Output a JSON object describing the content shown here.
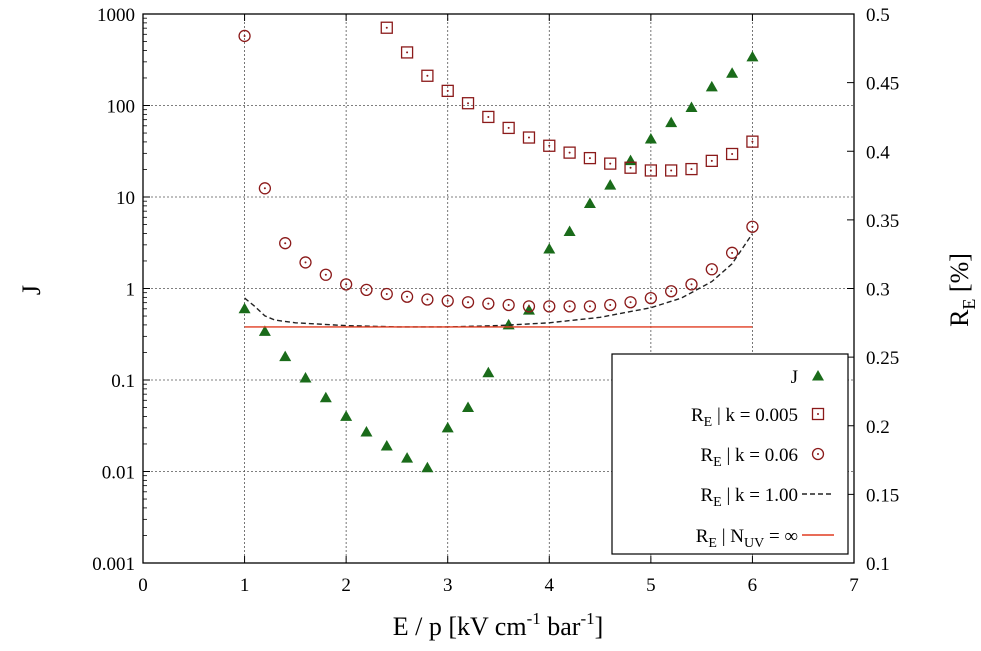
{
  "chart_data": {
    "type": "scatter",
    "x_label": "E / p [kV cm-1 bar-1]",
    "y_left_label": "J",
    "y_right_label": "RE [%]",
    "x_ticks": [
      "0",
      "1",
      "2",
      "3",
      "4",
      "5",
      "6",
      "7"
    ],
    "y_left_ticks": [
      "0.001",
      "0.01",
      "0.1",
      "1",
      "10",
      "100",
      "1000"
    ],
    "y_right_ticks": [
      "0.1",
      "0.15",
      "0.2",
      "0.25",
      "0.3",
      "0.35",
      "0.4",
      "0.45",
      "0.5"
    ],
    "xlim": [
      0,
      7
    ],
    "y_left_lim": [
      0.001,
      1000
    ],
    "y_left_scale": "log",
    "y_right_lim": [
      0.1,
      0.5
    ],
    "grid": true,
    "legend_position": "bottom-right",
    "colors": {
      "J": "#1a6b1a",
      "k0005": "#8b1a1a",
      "k006": "#8b1a1a",
      "k100": "#222222",
      "nuv": "#e03c20"
    },
    "series": [
      {
        "name": "J",
        "legend": "J",
        "axis": "left",
        "marker": "triangle",
        "x": [
          1.0,
          1.2,
          1.4,
          1.6,
          1.8,
          2.0,
          2.2,
          2.4,
          2.6,
          2.8,
          3.0,
          3.2,
          3.4,
          3.6,
          3.8,
          4.0,
          4.2,
          4.4,
          4.6,
          4.8,
          5.0,
          5.2,
          5.4,
          5.6,
          5.8,
          6.0
        ],
        "y": [
          0.6,
          0.34,
          0.18,
          0.105,
          0.064,
          0.04,
          0.027,
          0.019,
          0.014,
          0.011,
          0.03,
          0.05,
          0.12,
          0.4,
          0.58,
          2.7,
          4.2,
          8.5,
          13.5,
          25,
          43,
          65,
          95,
          160,
          225,
          340
        ]
      },
      {
        "name": "RE | k = 0.005",
        "legend_sub": "E",
        "legend_main": "R",
        "legend_rest": " | k = 0.005",
        "axis": "right",
        "marker": "square",
        "x": [
          2.4,
          2.6,
          2.8,
          3.0,
          3.2,
          3.4,
          3.6,
          3.8,
          4.0,
          4.2,
          4.4,
          4.6,
          4.8,
          5.0,
          5.2,
          5.4,
          5.6,
          5.8,
          6.0
        ],
        "y": [
          0.49,
          0.472,
          0.455,
          0.444,
          0.435,
          0.425,
          0.417,
          0.41,
          0.404,
          0.399,
          0.395,
          0.391,
          0.388,
          0.386,
          0.386,
          0.387,
          0.393,
          0.398,
          0.407
        ]
      },
      {
        "name": "RE | k = 0.06",
        "legend_sub": "E",
        "legend_main": "R",
        "legend_rest": " | k = 0.06",
        "axis": "right",
        "marker": "circle",
        "x": [
          1.0,
          1.2,
          1.4,
          1.6,
          1.8,
          2.0,
          2.2,
          2.4,
          2.6,
          2.8,
          3.0,
          3.2,
          3.4,
          3.6,
          3.8,
          4.0,
          4.2,
          4.4,
          4.6,
          4.8,
          5.0,
          5.2,
          5.4,
          5.6,
          5.8,
          6.0
        ],
        "y": [
          0.484,
          0.373,
          0.333,
          0.319,
          0.31,
          0.303,
          0.299,
          0.296,
          0.294,
          0.292,
          0.291,
          0.29,
          0.289,
          0.288,
          0.287,
          0.287,
          0.287,
          0.287,
          0.288,
          0.29,
          0.293,
          0.298,
          0.303,
          0.314,
          0.326,
          0.345
        ]
      },
      {
        "name": "RE | k = 1.00",
        "legend_sub": "E",
        "legend_main": "R",
        "legend_rest": " | k = 1.00",
        "axis": "right",
        "marker": "dashed-line",
        "x": [
          1.0,
          1.1,
          1.2,
          1.3,
          1.5,
          2.0,
          2.5,
          3.0,
          3.5,
          4.0,
          4.5,
          5.0,
          5.3,
          5.6,
          5.8,
          6.0
        ],
        "y": [
          0.293,
          0.287,
          0.28,
          0.277,
          0.275,
          0.273,
          0.272,
          0.272,
          0.273,
          0.275,
          0.279,
          0.286,
          0.293,
          0.305,
          0.318,
          0.34
        ]
      },
      {
        "name": "RE | NUV = ∞",
        "legend_sub": "E",
        "legend_main": "R",
        "legend_rest": " | N",
        "legend_sub2": "UV",
        "legend_rest2": " = ∞",
        "axis": "right",
        "marker": "solid-line",
        "x": [
          1.0,
          6.0
        ],
        "y": [
          0.272,
          0.272
        ]
      }
    ]
  }
}
